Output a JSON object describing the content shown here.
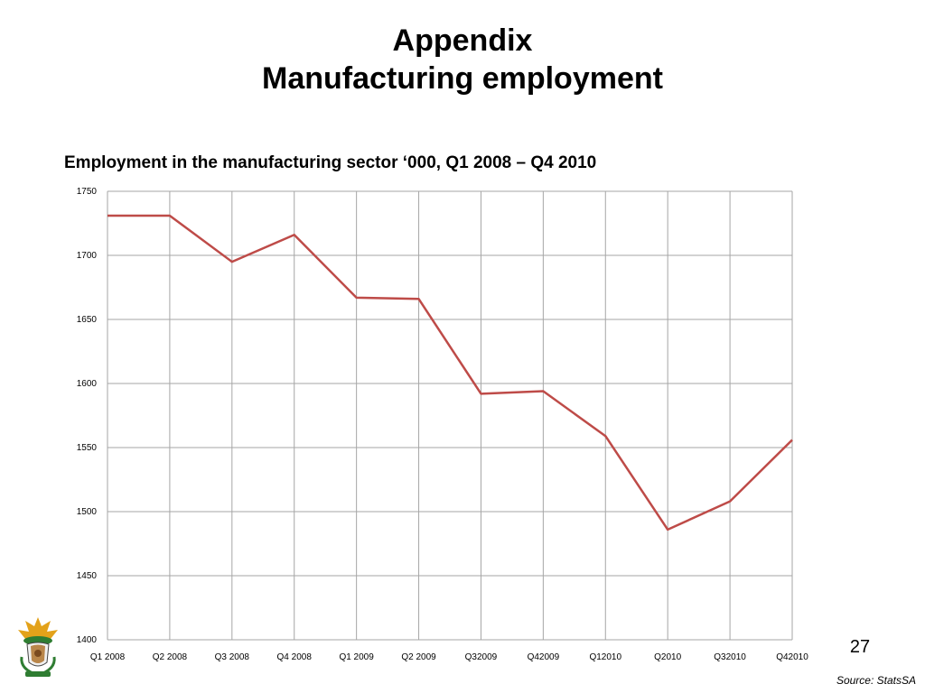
{
  "slide": {
    "title_line1": "Appendix",
    "title_line2": "Manufacturing employment",
    "page_number": "27",
    "source": "Source:  StatsSA"
  },
  "chart_data": {
    "type": "line",
    "title": "Employment in the manufacturing sector ‘000, Q1 2008 – Q4 2010",
    "categories": [
      "Q1 2008",
      "Q2 2008",
      "Q3 2008",
      "Q4 2008",
      "Q1 2009",
      "Q2 2009",
      "Q32009",
      "Q42009",
      "Q12010",
      "Q2010",
      "Q32010",
      "Q42010"
    ],
    "series": [
      {
        "values": [
          1731,
          1731,
          1695,
          1716,
          1667,
          1666,
          1592,
          1594,
          1559,
          1486,
          1508,
          1556
        ],
        "color": "#be4b48"
      }
    ],
    "ylim": [
      1400,
      1750
    ],
    "yticks": [
      1400,
      1450,
      1500,
      1550,
      1600,
      1650,
      1700,
      1750
    ],
    "grid": true,
    "gridColor": "#a6a6a6"
  }
}
